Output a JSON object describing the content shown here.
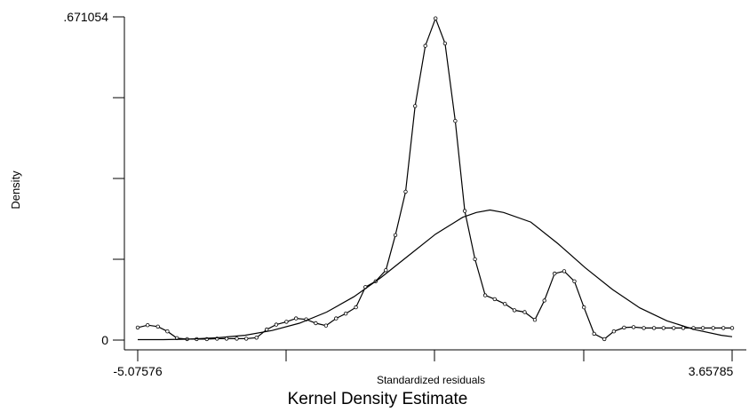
{
  "chart_data": {
    "type": "line",
    "title": "Kernel Density Estimate",
    "xlabel": "Standardized residuals",
    "ylabel": "Density",
    "xlim": [
      -5.07576,
      3.65785
    ],
    "ylim": [
      0,
      0.671054
    ],
    "x_tick_labels": [
      "-5.07576",
      "3.65785"
    ],
    "y_tick_labels": [
      ".671054",
      "0"
    ],
    "grid": false,
    "colors": {
      "lines": "#000000",
      "background": "#ffffff"
    },
    "series": [
      {
        "style": "line-with-circle-markers",
        "x": [
          -5.07576,
          -4.93,
          -4.78,
          -4.64,
          -4.5,
          -4.35,
          -4.21,
          -4.06,
          -3.91,
          -3.77,
          -3.62,
          -3.48,
          -3.33,
          -3.18,
          -3.04,
          -2.89,
          -2.75,
          -2.6,
          -2.46,
          -2.31,
          -2.16,
          -2.02,
          -1.87,
          -1.73,
          -1.58,
          -1.43,
          -1.29,
          -1.14,
          -1.0,
          -0.85,
          -0.7,
          -0.56,
          -0.41,
          -0.27,
          -0.12,
          0.03,
          0.17,
          0.32,
          0.46,
          0.61,
          0.76,
          0.9,
          1.05,
          1.19,
          1.34,
          1.48,
          1.63,
          1.78,
          1.92,
          2.07,
          2.21,
          2.36,
          2.51,
          2.65,
          2.8,
          2.94,
          3.09,
          3.23,
          3.38,
          3.53,
          3.65785
        ],
        "y": [
          0.026,
          0.031,
          0.028,
          0.018,
          0.004,
          0.002,
          0.002,
          0.002,
          0.003,
          0.003,
          0.003,
          0.003,
          0.005,
          0.022,
          0.032,
          0.038,
          0.045,
          0.043,
          0.035,
          0.03,
          0.045,
          0.055,
          0.068,
          0.11,
          0.122,
          0.145,
          0.218,
          0.308,
          0.486,
          0.611,
          0.668,
          0.616,
          0.455,
          0.268,
          0.168,
          0.093,
          0.085,
          0.075,
          0.062,
          0.058,
          0.042,
          0.082,
          0.138,
          0.143,
          0.122,
          0.068,
          0.013,
          0.002,
          0.018,
          0.026,
          0.027,
          0.025,
          0.025,
          0.025,
          0.025,
          0.025,
          0.025,
          0.025,
          0.025,
          0.025,
          0.025
        ]
      },
      {
        "style": "smooth-line",
        "x": [
          -5.07576,
          -4.7,
          -4.3,
          -3.9,
          -3.5,
          -3.1,
          -2.7,
          -2.3,
          -1.9,
          -1.5,
          -1.1,
          -0.7,
          -0.3,
          -0.1,
          0.1,
          0.3,
          0.7,
          1.1,
          1.5,
          1.9,
          2.3,
          2.7,
          3.1,
          3.5,
          3.65785
        ],
        "y": [
          0.001,
          0.001,
          0.002,
          0.005,
          0.01,
          0.02,
          0.035,
          0.058,
          0.09,
          0.13,
          0.175,
          0.22,
          0.255,
          0.265,
          0.27,
          0.265,
          0.245,
          0.2,
          0.15,
          0.105,
          0.067,
          0.04,
          0.022,
          0.01,
          0.007
        ]
      }
    ]
  }
}
